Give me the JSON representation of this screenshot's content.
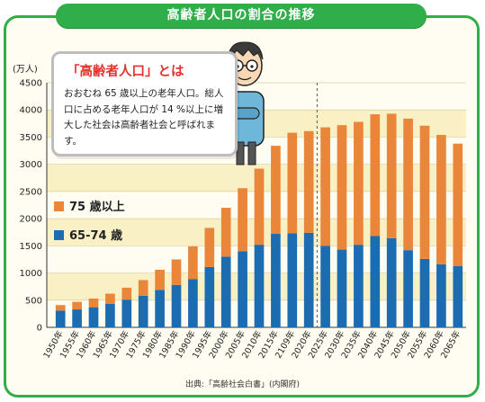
{
  "header": {
    "title": "高齢者人口の割合の推移"
  },
  "callout": {
    "title": "「高齢者人口」とは",
    "body": "おおむね 65 歳以上の老年人口。総人口に占める老年人口が 14 %以上に増大した社会は高齢者社会と呼ばれます。"
  },
  "legend": {
    "series_75": "75 歳以上",
    "series_6574": "65-74 歳"
  },
  "source": "出典:「高齢社会白書」(内閣府)",
  "colors": {
    "green": "#2fae49",
    "orange": "#ea863a",
    "blue": "#1c6cb1",
    "band": "#f9f0c6"
  },
  "chart_data": {
    "type": "bar",
    "stacked": true,
    "ylabel": "(万人)",
    "ylim": [
      0,
      4500
    ],
    "yticks": [
      0,
      500,
      1000,
      1500,
      2000,
      2500,
      3000,
      3500,
      4000,
      4500
    ],
    "categories": [
      "1950年",
      "1955年",
      "1960年",
      "1965年",
      "1970年",
      "1975年",
      "1980年",
      "1985年",
      "1990年",
      "1995年",
      "2000年",
      "2005年",
      "2010年",
      "2015年",
      "2109年",
      "2020年",
      "2025年",
      "2030年",
      "2035年",
      "2040年",
      "2045年",
      "2050年",
      "2055年",
      "2060年",
      "2065年"
    ],
    "series": [
      {
        "name": "65-74 歳",
        "values": [
          310,
          330,
          370,
          430,
          510,
          580,
          690,
          780,
          890,
          1110,
          1300,
          1400,
          1520,
          1720,
          1730,
          1740,
          1500,
          1430,
          1520,
          1680,
          1640,
          1420,
          1260,
          1160,
          1130
        ]
      },
      {
        "name": "75 歳以上",
        "values": [
          100,
          140,
          160,
          190,
          220,
          290,
          370,
          470,
          600,
          720,
          900,
          1160,
          1400,
          1620,
          1850,
          1870,
          2180,
          2290,
          2260,
          2240,
          2290,
          2420,
          2450,
          2380,
          2250
        ]
      }
    ],
    "annotations": [
      "dashed divider between 2020年 and 2025年"
    ],
    "grid": true
  }
}
